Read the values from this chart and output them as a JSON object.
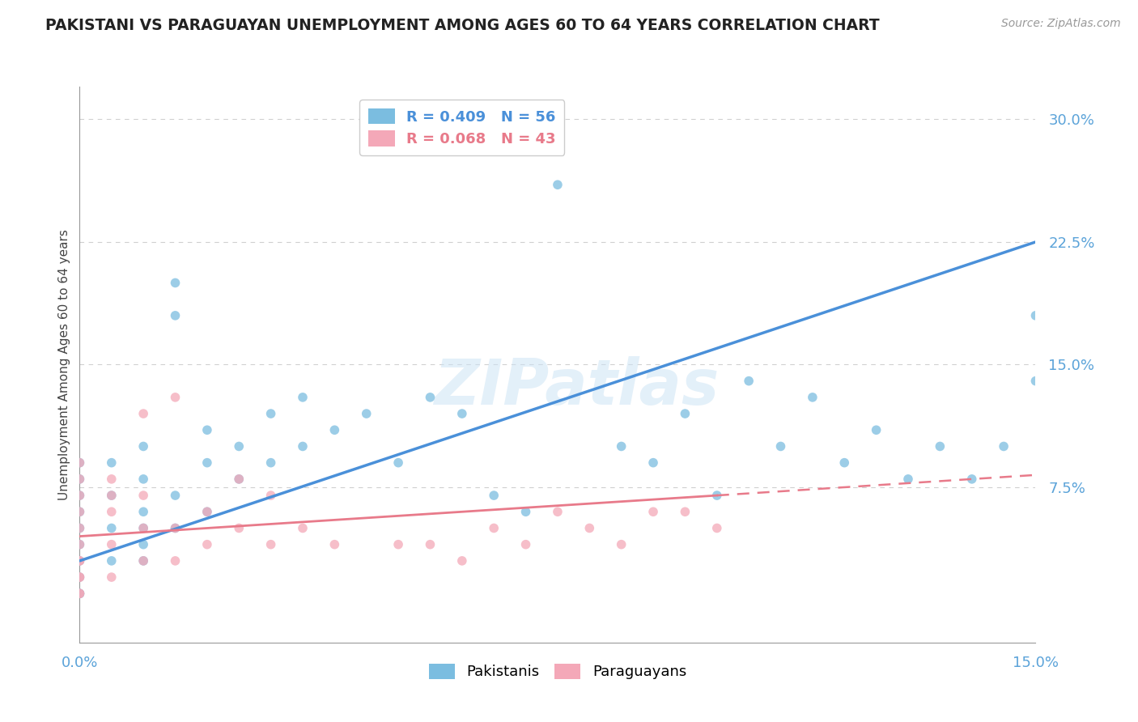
{
  "title": "PAKISTANI VS PARAGUAYAN UNEMPLOYMENT AMONG AGES 60 TO 64 YEARS CORRELATION CHART",
  "source_text": "Source: ZipAtlas.com",
  "ylabel": "Unemployment Among Ages 60 to 64 years",
  "xlim": [
    0.0,
    0.15
  ],
  "ylim": [
    -0.02,
    0.32
  ],
  "ytick_vals": [
    0.075,
    0.15,
    0.225,
    0.3
  ],
  "ytick_labels": [
    "7.5%",
    "15.0%",
    "22.5%",
    "30.0%"
  ],
  "xtick_vals": [
    0.0,
    0.025,
    0.05,
    0.075,
    0.1,
    0.125,
    0.15
  ],
  "xtick_labels": [
    "0.0%",
    "",
    "",
    "",
    "",
    "",
    "15.0%"
  ],
  "pakistani_color": "#7bbde0",
  "paraguayan_color": "#f4a8b8",
  "trend_pak_color": "#4a90d9",
  "trend_par_color": "#e87a8a",
  "tick_color": "#5ba3d9",
  "R_pak": 0.409,
  "N_pak": 56,
  "R_par": 0.068,
  "N_par": 43,
  "watermark": "ZIPatlas",
  "pakistani_x": [
    0.0,
    0.0,
    0.0,
    0.0,
    0.0,
    0.0,
    0.0,
    0.0,
    0.0,
    0.0,
    0.005,
    0.005,
    0.005,
    0.005,
    0.01,
    0.01,
    0.01,
    0.01,
    0.01,
    0.01,
    0.015,
    0.015,
    0.015,
    0.015,
    0.02,
    0.02,
    0.02,
    0.025,
    0.025,
    0.03,
    0.03,
    0.035,
    0.035,
    0.04,
    0.045,
    0.05,
    0.055,
    0.06,
    0.065,
    0.07,
    0.075,
    0.085,
    0.09,
    0.095,
    0.1,
    0.105,
    0.11,
    0.115,
    0.12,
    0.125,
    0.13,
    0.135,
    0.14,
    0.145,
    0.15,
    0.15
  ],
  "pakistani_y": [
    0.01,
    0.02,
    0.03,
    0.04,
    0.05,
    0.06,
    0.07,
    0.08,
    0.09,
    0.01,
    0.03,
    0.05,
    0.07,
    0.09,
    0.03,
    0.04,
    0.05,
    0.06,
    0.08,
    0.1,
    0.05,
    0.07,
    0.18,
    0.2,
    0.06,
    0.09,
    0.11,
    0.08,
    0.1,
    0.09,
    0.12,
    0.1,
    0.13,
    0.11,
    0.12,
    0.09,
    0.13,
    0.12,
    0.07,
    0.06,
    0.26,
    0.1,
    0.09,
    0.12,
    0.07,
    0.14,
    0.1,
    0.13,
    0.09,
    0.11,
    0.08,
    0.1,
    0.08,
    0.1,
    0.18,
    0.14
  ],
  "paraguayan_x": [
    0.0,
    0.0,
    0.0,
    0.0,
    0.0,
    0.0,
    0.0,
    0.0,
    0.0,
    0.0,
    0.0,
    0.0,
    0.005,
    0.005,
    0.005,
    0.005,
    0.005,
    0.01,
    0.01,
    0.01,
    0.01,
    0.015,
    0.015,
    0.015,
    0.02,
    0.02,
    0.025,
    0.025,
    0.03,
    0.03,
    0.035,
    0.04,
    0.05,
    0.055,
    0.06,
    0.065,
    0.07,
    0.075,
    0.08,
    0.085,
    0.09,
    0.095,
    0.1
  ],
  "paraguayan_y": [
    0.01,
    0.02,
    0.03,
    0.04,
    0.05,
    0.06,
    0.07,
    0.01,
    0.02,
    0.03,
    0.08,
    0.09,
    0.02,
    0.04,
    0.06,
    0.07,
    0.08,
    0.03,
    0.05,
    0.07,
    0.12,
    0.03,
    0.05,
    0.13,
    0.04,
    0.06,
    0.05,
    0.08,
    0.04,
    0.07,
    0.05,
    0.04,
    0.04,
    0.04,
    0.03,
    0.05,
    0.04,
    0.06,
    0.05,
    0.04,
    0.06,
    0.06,
    0.05
  ],
  "background_color": "#ffffff",
  "grid_color": "#d0d0d0"
}
